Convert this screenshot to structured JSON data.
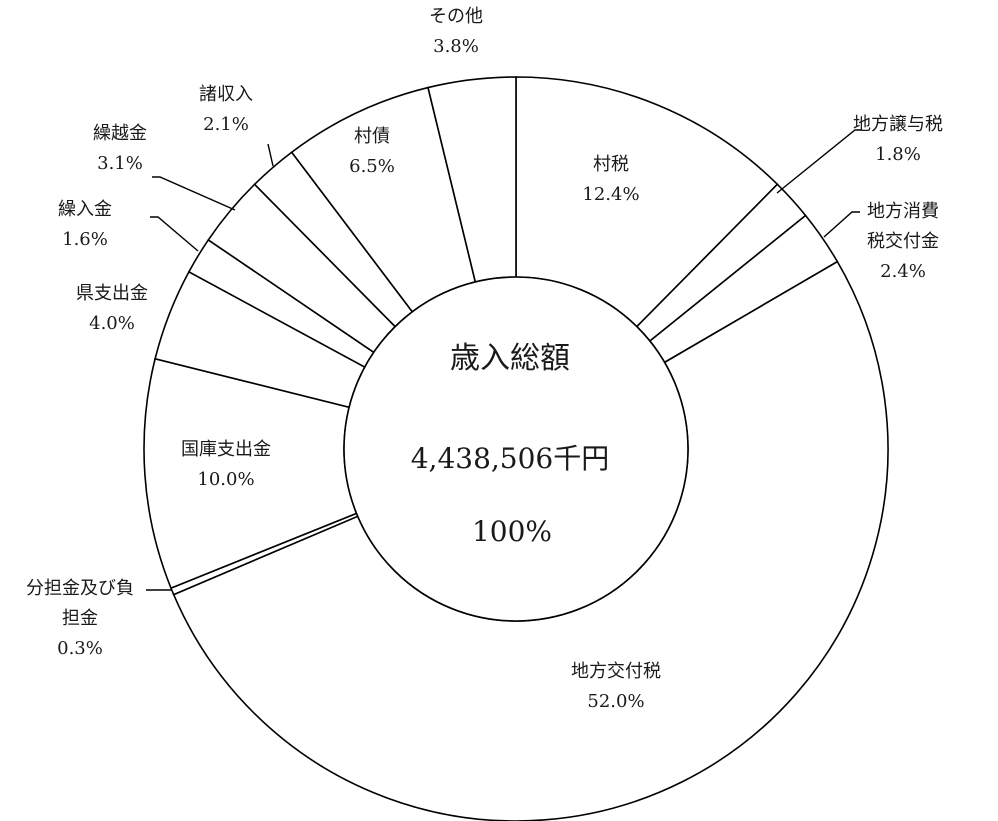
{
  "chart_data": {
    "type": "pie",
    "categories": [
      "村税",
      "地方譲与税",
      "地方消費税交付金",
      "地方交付税",
      "分担金及び負担金",
      "国庫支出金",
      "県支出金",
      "繰入金",
      "繰越金",
      "諸収入",
      "村債",
      "その他"
    ],
    "values": [
      12.4,
      1.8,
      2.4,
      52.0,
      0.3,
      10.0,
      4.0,
      1.6,
      3.1,
      2.1,
      6.5,
      3.8
    ],
    "value_labels": [
      "12.4%",
      "1.8%",
      "2.4%",
      "52.0%",
      "0.3%",
      "10.0%",
      "4.0%",
      "1.6%",
      "3.1%",
      "2.1%",
      "6.5%",
      "3.8%"
    ],
    "center": {
      "title": "歳入総額",
      "total": "4,438,506千円",
      "percent": "100%"
    }
  }
}
